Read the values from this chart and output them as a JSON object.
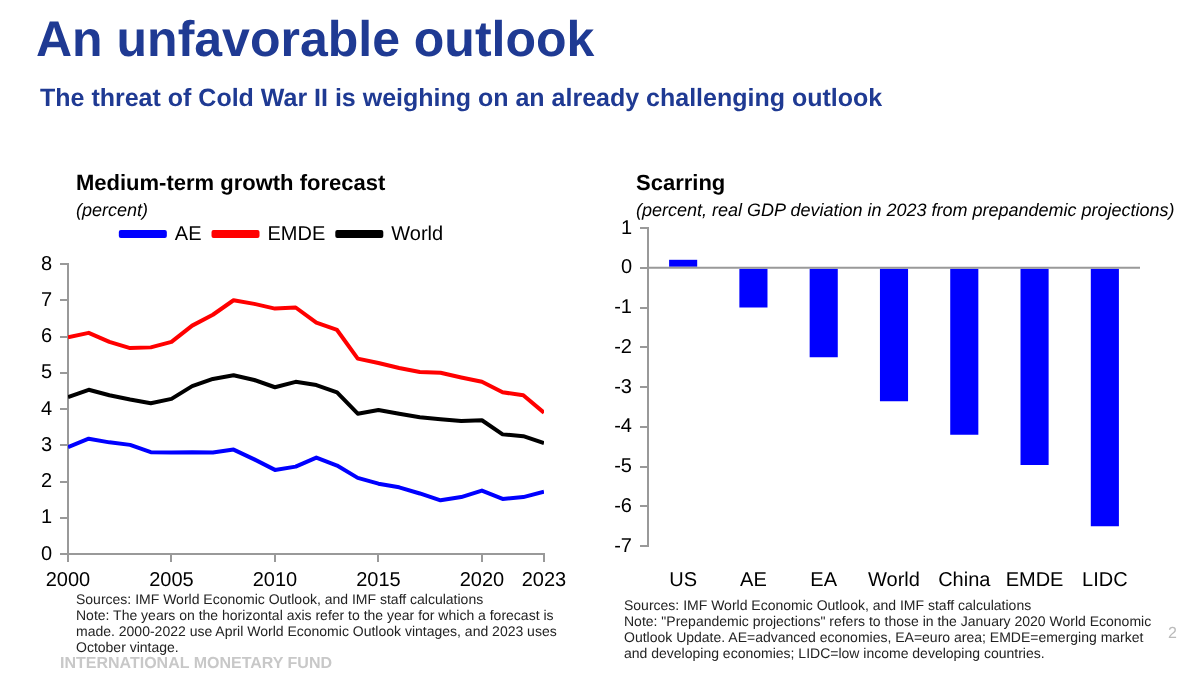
{
  "chart_data": [
    {
      "type": "other",
      "title": "An unfavorable outlook",
      "subtitle": "The threat of Cold War II is weighing on an already challenging outlook",
      "annotations": [
        "INTERNATIONAL MONETARY FUND",
        "2"
      ]
    },
    {
      "type": "line",
      "title": "Medium-term growth forecast",
      "ylabel": "(percent)",
      "x": [
        2000,
        2001,
        2002,
        2003,
        2004,
        2005,
        2006,
        2007,
        2008,
        2009,
        2010,
        2011,
        2012,
        2013,
        2014,
        2015,
        2016,
        2017,
        2018,
        2019,
        2020,
        2021,
        2022,
        2023
      ],
      "xlim": [
        2000,
        2023
      ],
      "xticks": [
        2000,
        2005,
        2010,
        2015,
        2020,
        2023
      ],
      "ylim": [
        0,
        8
      ],
      "yticks": [
        0,
        1,
        2,
        3,
        4,
        5,
        6,
        7,
        8
      ],
      "series": [
        {
          "name": "AE",
          "color": "#0000ff",
          "values": [
            2.95,
            3.18,
            3.08,
            3.01,
            2.81,
            2.8,
            2.81,
            2.8,
            2.88,
            2.61,
            2.32,
            2.41,
            2.66,
            2.44,
            2.1,
            1.94,
            1.84,
            1.67,
            1.48,
            1.57,
            1.75,
            1.52,
            1.57,
            1.72
          ]
        },
        {
          "name": "EMDE",
          "color": "#ff0000",
          "values": [
            5.98,
            6.1,
            5.85,
            5.68,
            5.7,
            5.85,
            6.3,
            6.6,
            7.0,
            6.9,
            6.77,
            6.8,
            6.38,
            6.18,
            5.39,
            5.27,
            5.13,
            5.02,
            5.0,
            4.87,
            4.75,
            4.46,
            4.38,
            3.9
          ]
        },
        {
          "name": "World",
          "color": "#000000",
          "values": [
            4.33,
            4.53,
            4.38,
            4.26,
            4.16,
            4.28,
            4.63,
            4.83,
            4.93,
            4.8,
            4.6,
            4.75,
            4.66,
            4.46,
            3.87,
            3.97,
            3.87,
            3.77,
            3.72,
            3.67,
            3.69,
            3.3,
            3.25,
            3.06
          ]
        }
      ],
      "legend": "top",
      "marker": "none",
      "line_style": "solid",
      "annotations": [
        "Sources: IMF World Economic Outlook, and IMF staff calculations",
        "Note: The years on the horizontal axis refer to the year for which a forecast is made. 2000-2022 use April World Economic Outlook vintages, and 2023 uses October vintage."
      ]
    },
    {
      "type": "bar",
      "title": "Scarring",
      "ylabel": "(percent, real GDP deviation in 2023 from prepandemic projections)",
      "categories": [
        "US",
        "AE",
        "EA",
        "World",
        "China",
        "EMDE",
        "LIDC"
      ],
      "values": [
        0.2,
        -1.0,
        -2.25,
        -3.36,
        -4.2,
        -4.96,
        -6.5
      ],
      "color": "#0000ff",
      "ylim": [
        -7,
        1
      ],
      "yticks": [
        -7,
        -6,
        -5,
        -4,
        -3,
        -2,
        -1,
        0,
        1
      ],
      "annotations": [
        "Sources: IMF World Economic Outlook, and IMF staff calculations",
        "Note: \"Prepandemic projections\" refers to those in the January 2020 World Economic Outlook Update. AE=advanced economies, EA=euro area; EMDE=emerging market and developing economies; LIDC=low income developing countries."
      ]
    }
  ]
}
